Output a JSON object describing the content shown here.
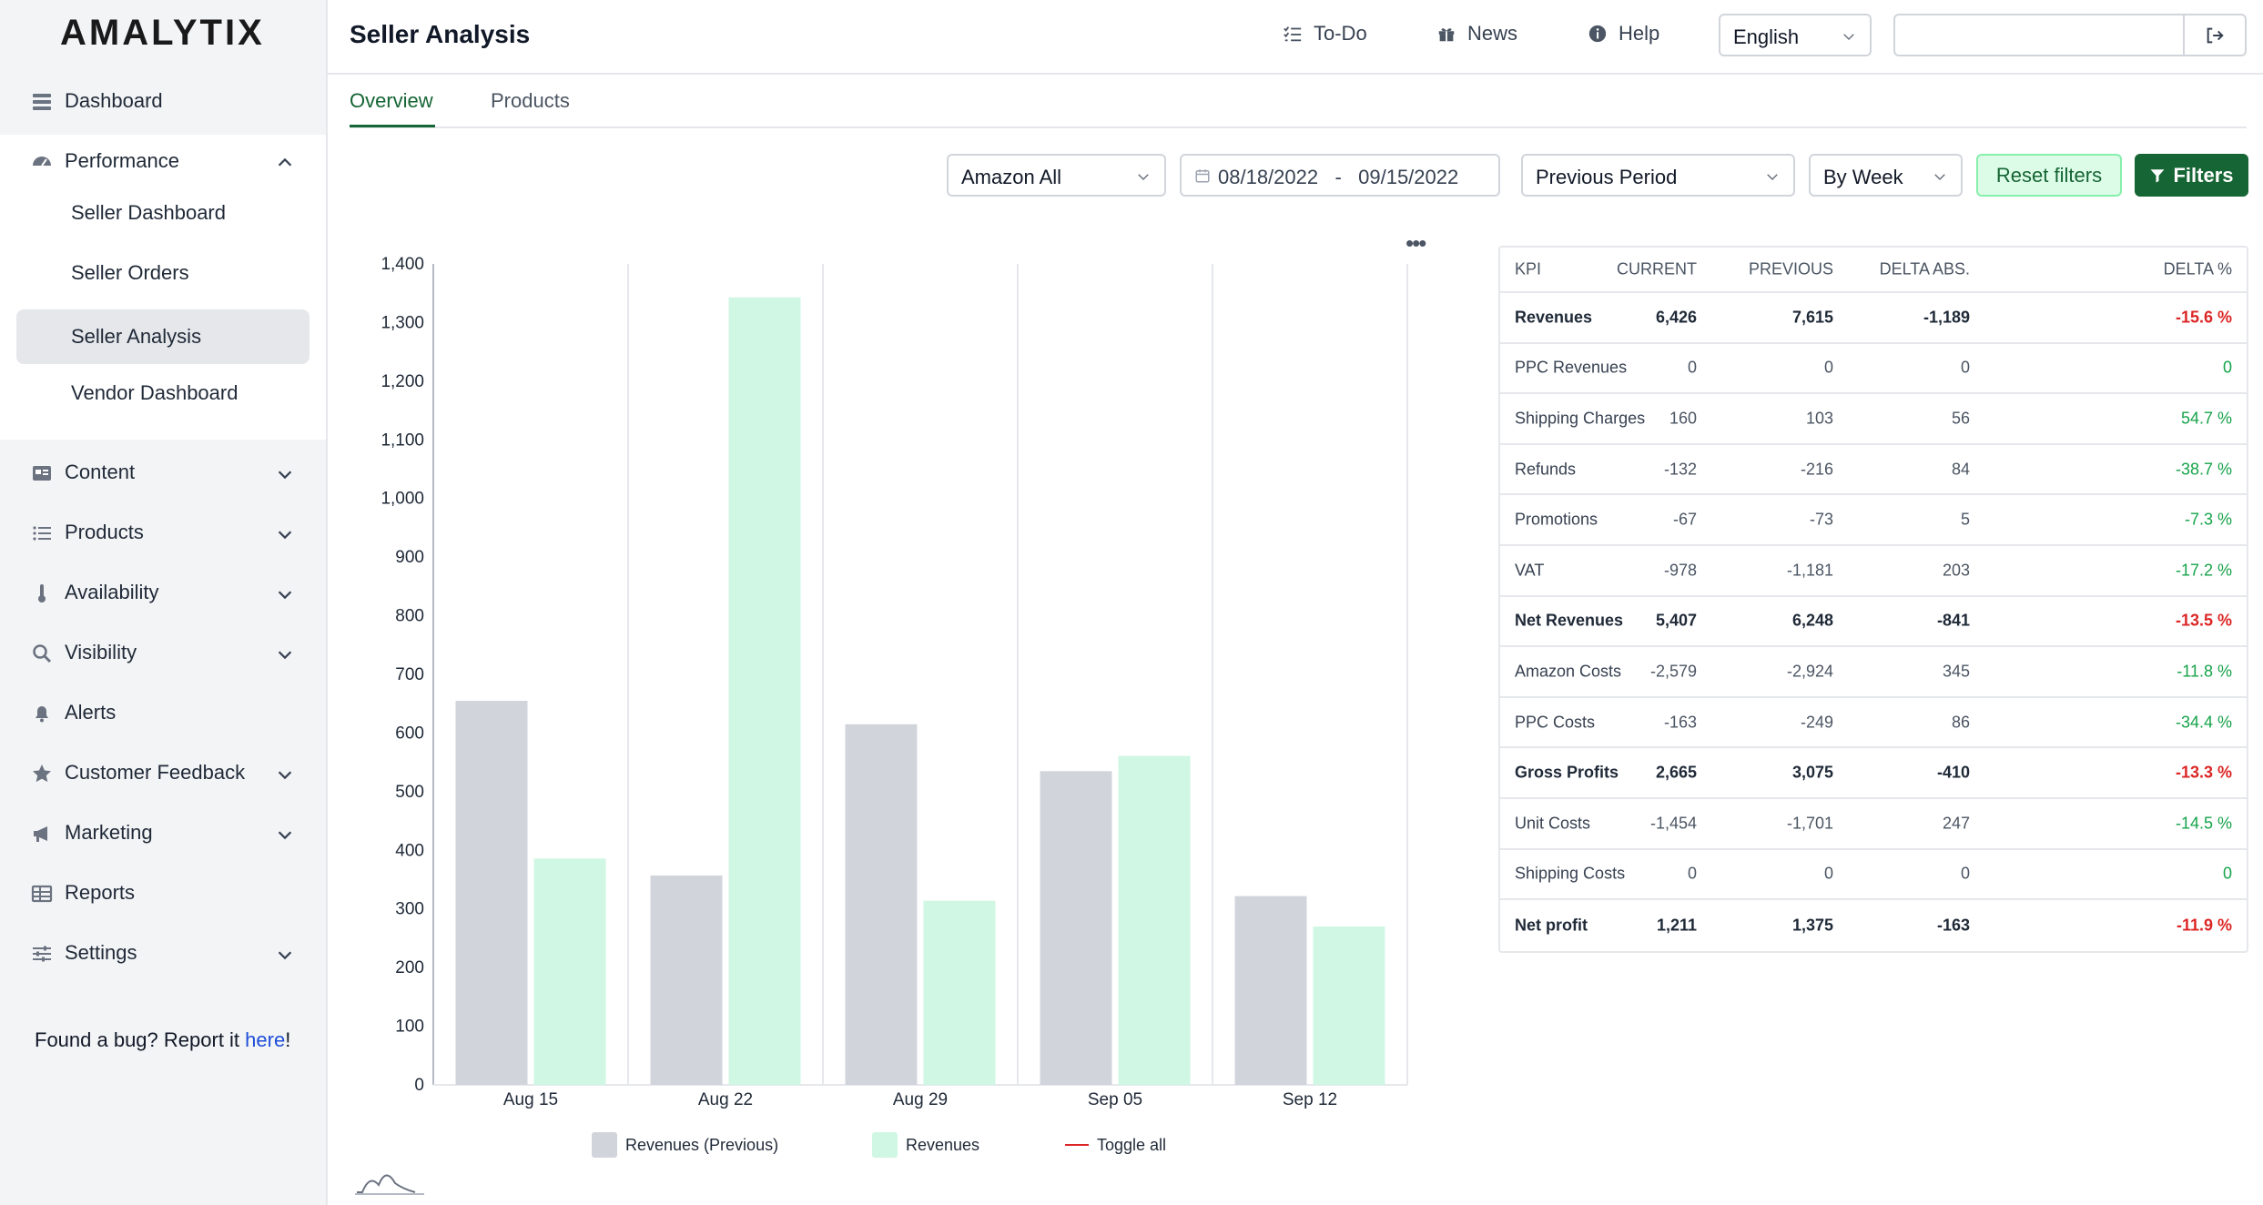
{
  "app": {
    "logo": "AMALYTIX",
    "page_title": "Seller Analysis"
  },
  "header": {
    "todo": "To-Do",
    "news": "News",
    "help": "Help",
    "language": "English",
    "search_value": ""
  },
  "sidebar": {
    "dashboard": "Dashboard",
    "performance": "Performance",
    "performance_sub": [
      "Seller Dashboard",
      "Seller Orders",
      "Seller Analysis",
      "Vendor Dashboard"
    ],
    "content": "Content",
    "products": "Products",
    "availability": "Availability",
    "visibility": "Visibility",
    "alerts": "Alerts",
    "customer_feedback": "Customer Feedback",
    "marketing": "Marketing",
    "reports": "Reports",
    "settings": "Settings",
    "bug_prefix": "Found a bug? Report it ",
    "bug_link": "here",
    "bug_suffix": "!"
  },
  "tabs": {
    "overview": "Overview",
    "products": "Products"
  },
  "filters": {
    "marketplace": "Amazon All",
    "date_from": "08/18/2022",
    "date_sep": "-",
    "date_to": "09/15/2022",
    "comparison": "Previous Period",
    "granularity": "By Week",
    "reset": "Reset filters",
    "filters": "Filters"
  },
  "chart_menu": "•••",
  "chart_data": {
    "type": "bar",
    "categories": [
      "Aug 15",
      "Aug 22",
      "Aug 29",
      "Sep 05",
      "Sep 12"
    ],
    "series": [
      {
        "name": "Revenues (Previous)",
        "values": [
          655,
          357,
          615,
          535,
          322
        ],
        "color": "#d1d5db"
      },
      {
        "name": "Revenues",
        "values": [
          386,
          1343,
          314,
          561,
          270
        ],
        "color": "#cff7e4"
      }
    ],
    "y_ticks": [
      "0",
      "100",
      "200",
      "300",
      "400",
      "500",
      "600",
      "700",
      "800",
      "900",
      "1,000",
      "1,100",
      "1,200",
      "1,300",
      "1,400"
    ],
    "ylim": [
      0,
      1400
    ],
    "legend": {
      "toggle_all": "Toggle all",
      "toggle_color": "#dc2626",
      "position": "bottom"
    }
  },
  "kpi_table": {
    "headers": [
      "KPI",
      "CURRENT",
      "PREVIOUS",
      "DELTA ABS.",
      "DELTA %"
    ],
    "rows": [
      {
        "kpi": "Revenues",
        "current": "6,426",
        "previous": "7,615",
        "delta_abs": "-1,189",
        "delta_pct": "-15.6 %",
        "bold": true,
        "trend": "neg"
      },
      {
        "kpi": "PPC Revenues",
        "current": "0",
        "previous": "0",
        "delta_abs": "0",
        "delta_pct": "0",
        "bold": false,
        "trend": "pos"
      },
      {
        "kpi": "Shipping Charges",
        "current": "160",
        "previous": "103",
        "delta_abs": "56",
        "delta_pct": "54.7 %",
        "bold": false,
        "trend": "pos"
      },
      {
        "kpi": "Refunds",
        "current": "-132",
        "previous": "-216",
        "delta_abs": "84",
        "delta_pct": "-38.7 %",
        "bold": false,
        "trend": "pos"
      },
      {
        "kpi": "Promotions",
        "current": "-67",
        "previous": "-73",
        "delta_abs": "5",
        "delta_pct": "-7.3 %",
        "bold": false,
        "trend": "pos"
      },
      {
        "kpi": "VAT",
        "current": "-978",
        "previous": "-1,181",
        "delta_abs": "203",
        "delta_pct": "-17.2 %",
        "bold": false,
        "trend": "pos"
      },
      {
        "kpi": "Net Revenues",
        "current": "5,407",
        "previous": "6,248",
        "delta_abs": "-841",
        "delta_pct": "-13.5 %",
        "bold": true,
        "trend": "neg"
      },
      {
        "kpi": "Amazon Costs",
        "current": "-2,579",
        "previous": "-2,924",
        "delta_abs": "345",
        "delta_pct": "-11.8 %",
        "bold": false,
        "trend": "pos"
      },
      {
        "kpi": "PPC Costs",
        "current": "-163",
        "previous": "-249",
        "delta_abs": "86",
        "delta_pct": "-34.4 %",
        "bold": false,
        "trend": "pos"
      },
      {
        "kpi": "Gross Profits",
        "current": "2,665",
        "previous": "3,075",
        "delta_abs": "-410",
        "delta_pct": "-13.3 %",
        "bold": true,
        "trend": "neg"
      },
      {
        "kpi": "Unit Costs",
        "current": "-1,454",
        "previous": "-1,701",
        "delta_abs": "247",
        "delta_pct": "-14.5 %",
        "bold": false,
        "trend": "pos"
      },
      {
        "kpi": "Shipping Costs",
        "current": "0",
        "previous": "0",
        "delta_abs": "0",
        "delta_pct": "0",
        "bold": false,
        "trend": "pos"
      },
      {
        "kpi": "Net profit",
        "current": "1,211",
        "previous": "1,375",
        "delta_abs": "-163",
        "delta_pct": "-11.9 %",
        "bold": true,
        "trend": "neg"
      }
    ]
  },
  "colors": {
    "accent": "#166534",
    "negative": "#dc2626",
    "positive": "#16a34a"
  }
}
